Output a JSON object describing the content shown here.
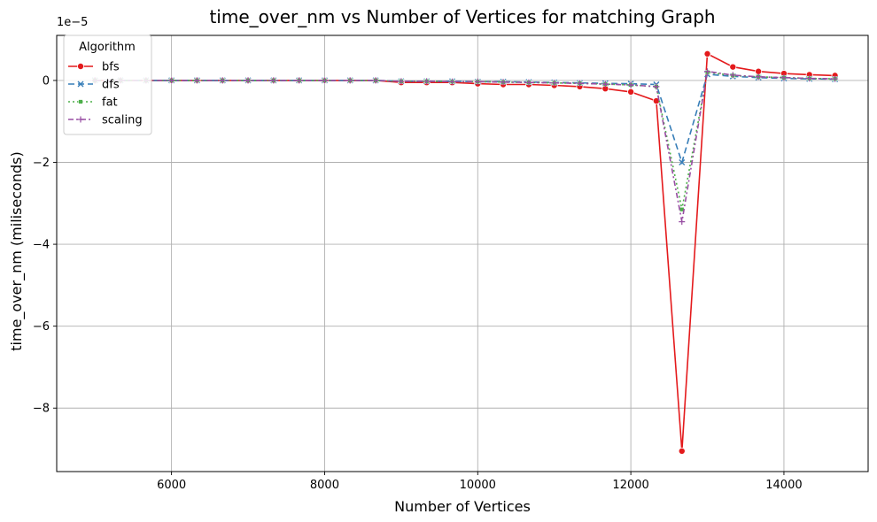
{
  "chart_data": {
    "type": "line",
    "title": "time_over_nm vs Number of Vertices for matching Graph",
    "xlabel": "Number of Vertices",
    "ylabel": "time_over_nm (miliseconds)",
    "y_scale_label": "1e−5",
    "xlim": [
      4500,
      15100
    ],
    "ylim": [
      -9.55,
      1.1
    ],
    "x_ticks": [
      6000,
      8000,
      10000,
      12000,
      14000
    ],
    "x_tick_labels": [
      "6000",
      "8000",
      "10000",
      "12000",
      "14000"
    ],
    "y_ticks": [
      -8,
      -6,
      -4,
      -2,
      0
    ],
    "y_tick_labels": [
      "−8",
      "−6",
      "−4",
      "−2",
      "0"
    ],
    "grid": true,
    "legend": {
      "title": "Algorithm",
      "position": "top-left"
    },
    "x": [
      5000,
      5333,
      5667,
      6000,
      6333,
      6667,
      7000,
      7333,
      7667,
      8000,
      8333,
      8667,
      9000,
      9333,
      9667,
      10000,
      10333,
      10667,
      11000,
      11333,
      11667,
      12000,
      12333,
      12667,
      13000,
      13333,
      13667,
      14000,
      14333,
      14667
    ],
    "series": [
      {
        "name": "bfs",
        "color": "#e41a1c",
        "dash": "",
        "marker": "circle",
        "values": [
          0.0,
          0.0,
          0.0,
          0.0,
          0.0,
          0.0,
          0.0,
          0.0,
          0.0,
          0.0,
          0.0,
          0.0,
          -0.05,
          -0.05,
          -0.05,
          -0.08,
          -0.1,
          -0.1,
          -0.12,
          -0.15,
          -0.2,
          -0.28,
          -0.5,
          -9.05,
          0.65,
          0.33,
          0.22,
          0.17,
          0.14,
          0.12
        ]
      },
      {
        "name": "dfs",
        "color": "#377eb8",
        "dash": "7,4",
        "marker": "x",
        "values": [
          0.0,
          0.0,
          0.0,
          0.0,
          0.0,
          0.0,
          0.0,
          0.0,
          0.0,
          0.0,
          0.0,
          0.0,
          -0.02,
          -0.02,
          -0.02,
          -0.03,
          -0.03,
          -0.04,
          -0.05,
          -0.06,
          -0.07,
          -0.08,
          -0.1,
          -2.0,
          0.15,
          0.1,
          0.07,
          0.05,
          0.04,
          0.03
        ]
      },
      {
        "name": "fat",
        "color": "#4daf4a",
        "dash": "2,3",
        "marker": "square",
        "values": [
          0.0,
          0.0,
          0.0,
          0.0,
          0.0,
          0.0,
          0.0,
          0.0,
          0.0,
          0.0,
          0.0,
          0.0,
          -0.02,
          -0.02,
          -0.03,
          -0.03,
          -0.04,
          -0.05,
          -0.06,
          -0.07,
          -0.09,
          -0.11,
          -0.15,
          -3.15,
          0.2,
          0.12,
          0.09,
          0.07,
          0.05,
          0.04
        ]
      },
      {
        "name": "scaling",
        "color": "#984ea3",
        "dash": "6,3,2,3",
        "marker": "plus",
        "values": [
          0.0,
          0.0,
          0.0,
          0.0,
          0.0,
          0.0,
          0.0,
          0.0,
          0.0,
          0.0,
          0.0,
          0.0,
          -0.02,
          -0.02,
          -0.03,
          -0.03,
          -0.04,
          -0.05,
          -0.06,
          -0.07,
          -0.09,
          -0.11,
          -0.15,
          -3.45,
          0.22,
          0.13,
          0.09,
          0.07,
          0.05,
          0.04
        ]
      }
    ]
  }
}
